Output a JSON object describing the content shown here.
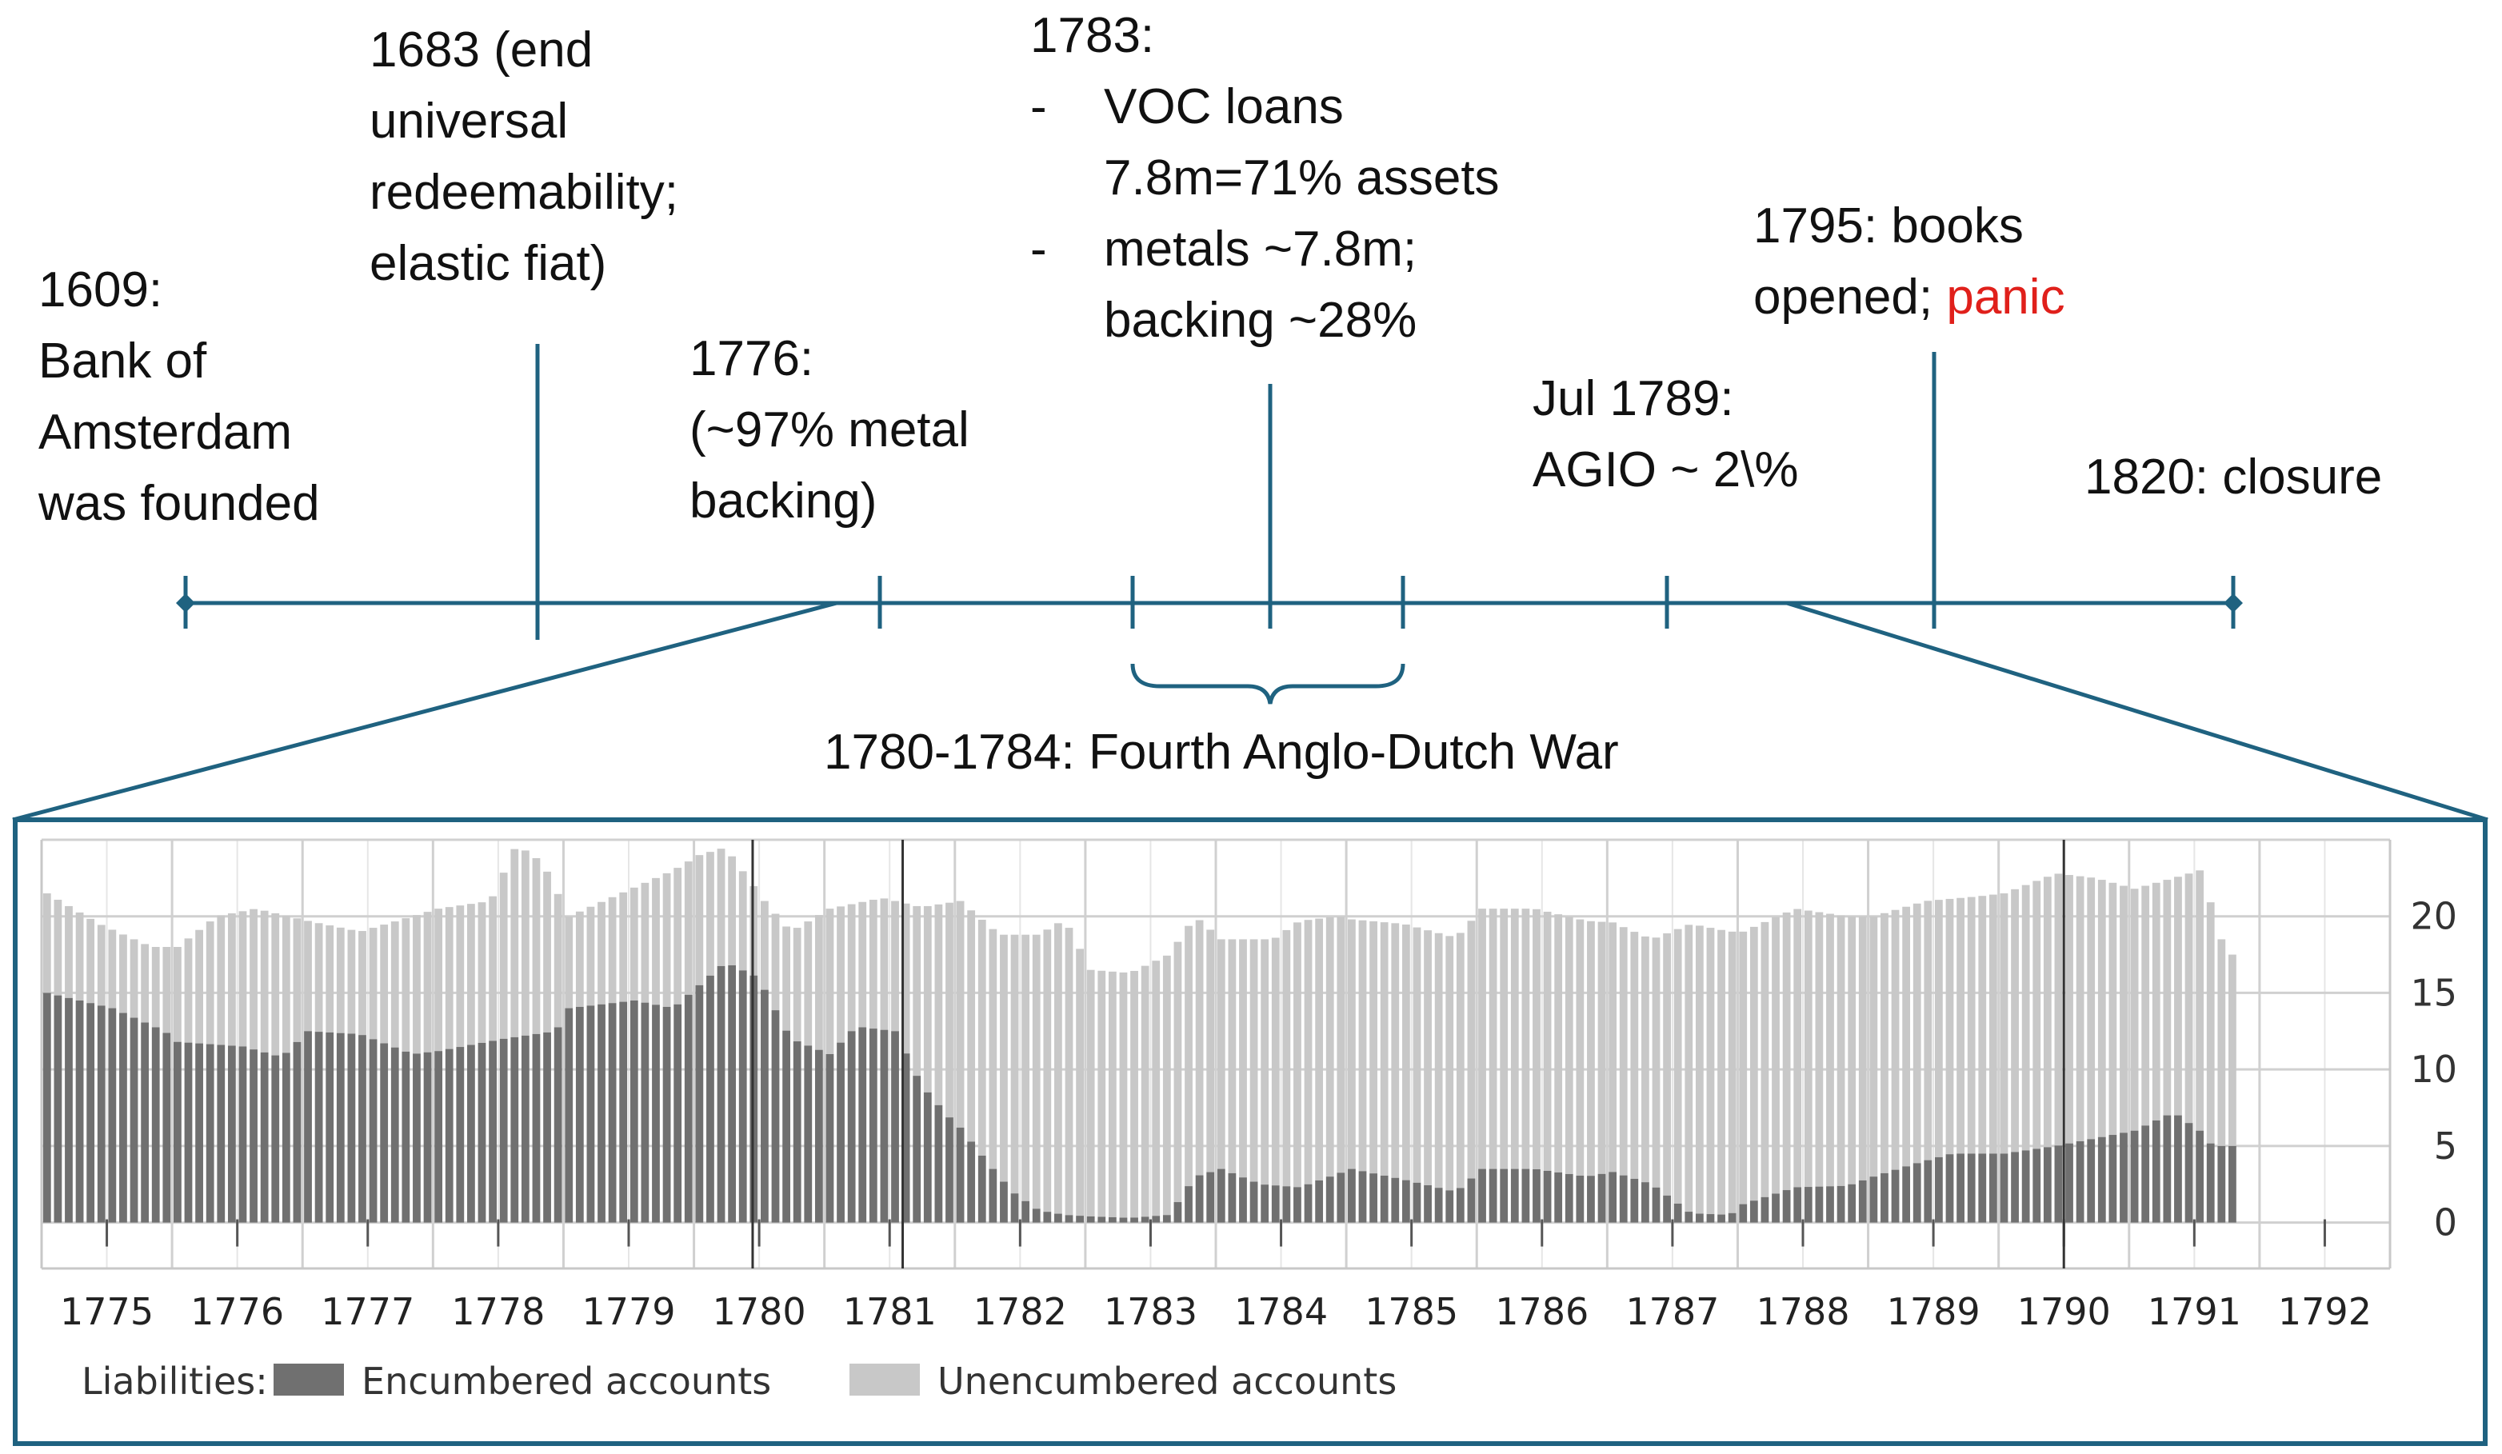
{
  "timeline": {
    "events": [
      {
        "id": "1609",
        "lines": [
          "1609:",
          "Bank of",
          "Amsterdam",
          "was founded"
        ]
      },
      {
        "id": "1683",
        "lines": [
          "1683 (end",
          "universal",
          "redeemability;",
          "elastic fiat)"
        ]
      },
      {
        "id": "1776",
        "lines": [
          "1776:",
          "(~97% metal",
          "backing)"
        ]
      },
      {
        "id": "1783",
        "heading": "1783:",
        "bullets": [
          {
            "dash": "-",
            "lines": [
              "VOC loans",
              "7.8m=71% assets"
            ]
          },
          {
            "dash": "-",
            "lines": [
              "metals ~7.8m;",
              "backing ~28%"
            ]
          }
        ]
      },
      {
        "id": "1789",
        "lines": [
          "Jul 1789:",
          "AGIO ~ 2\\%"
        ]
      },
      {
        "id": "1795",
        "lines": [
          "1795: books"
        ],
        "line2_text": "opened; ",
        "line2_highlight": "panic"
      },
      {
        "id": "1820",
        "lines": [
          "1820: closure"
        ]
      }
    ],
    "war_label": "1780-1784: Fourth Anglo-Dutch War",
    "colors": {
      "axis": "#1f6280",
      "highlight": "#e0201b"
    }
  },
  "chart_data": {
    "type": "bar",
    "stacked": true,
    "x_tick_labels": [
      "1775",
      "1776",
      "1777",
      "1778",
      "1779",
      "1780",
      "1781",
      "1782",
      "1783",
      "1784",
      "1785",
      "1786",
      "1787",
      "1788",
      "1789",
      "1790",
      "1791",
      "1792"
    ],
    "ylim": [
      -3,
      25
    ],
    "y_ticks": [
      0,
      5,
      10,
      15,
      20
    ],
    "grid": true,
    "legend_position": "bottom",
    "legend_title": "Liabilities:",
    "vertical_markers": [
      1780.45,
      1781.6,
      1790.5
    ],
    "series": [
      {
        "name": "Encumbered accounts",
        "color": "#707070",
        "points": [
          [
            1775.0,
            15
          ],
          [
            1775.5,
            14
          ],
          [
            1775.9,
            12.5
          ],
          [
            1776.0,
            11.8
          ],
          [
            1776.5,
            11.5
          ],
          [
            1776.8,
            10.8
          ],
          [
            1777.0,
            12.5
          ],
          [
            1777.4,
            12.3
          ],
          [
            1777.8,
            11
          ],
          [
            1778.0,
            11.2
          ],
          [
            1778.5,
            12
          ],
          [
            1778.9,
            12.5
          ],
          [
            1779.0,
            14
          ],
          [
            1779.5,
            14.5
          ],
          [
            1779.8,
            14
          ],
          [
            1780.0,
            15.5
          ],
          [
            1780.2,
            17
          ],
          [
            1780.45,
            16
          ],
          [
            1780.7,
            12
          ],
          [
            1781.0,
            11
          ],
          [
            1781.2,
            12.8
          ],
          [
            1781.5,
            12.5
          ],
          [
            1781.7,
            9
          ],
          [
            1781.9,
            7
          ],
          [
            1782.0,
            6.2
          ],
          [
            1782.2,
            4
          ],
          [
            1782.4,
            2
          ],
          [
            1782.6,
            0.8
          ],
          [
            1782.8,
            0.5
          ],
          [
            1783.0,
            0.4
          ],
          [
            1783.3,
            0.3
          ],
          [
            1783.6,
            0.5
          ],
          [
            1783.8,
            3
          ],
          [
            1784.0,
            3.5
          ],
          [
            1784.3,
            2.5
          ],
          [
            1784.6,
            2.3
          ],
          [
            1784.9,
            3.2
          ],
          [
            1785.0,
            3.5
          ],
          [
            1785.4,
            2.8
          ],
          [
            1785.8,
            2
          ],
          [
            1786.0,
            3.5
          ],
          [
            1786.4,
            3.5
          ],
          [
            1786.8,
            3
          ],
          [
            1787.0,
            3.3
          ],
          [
            1787.3,
            2.5
          ],
          [
            1787.6,
            0.6
          ],
          [
            1787.9,
            0.5
          ],
          [
            1788.0,
            1.2
          ],
          [
            1788.4,
            2.3
          ],
          [
            1788.8,
            2.4
          ],
          [
            1789.0,
            3
          ],
          [
            1789.3,
            3.8
          ],
          [
            1789.6,
            4.5
          ],
          [
            1790.0,
            4.5
          ],
          [
            1790.4,
            5
          ],
          [
            1790.7,
            5.5
          ],
          [
            1791.0,
            6
          ],
          [
            1791.3,
            7.2
          ],
          [
            1791.5,
            6
          ],
          [
            1791.6,
            5
          ]
        ]
      },
      {
        "name": "Unencumbered accounts",
        "color": "#c8c8c8",
        "totals": [
          [
            1775.0,
            21.5
          ],
          [
            1775.4,
            19.5
          ],
          [
            1775.8,
            18
          ],
          [
            1776.0,
            18
          ],
          [
            1776.3,
            20
          ],
          [
            1776.6,
            20.5
          ],
          [
            1777.0,
            19.7
          ],
          [
            1777.4,
            19
          ],
          [
            1777.8,
            20
          ],
          [
            1778.0,
            20.5
          ],
          [
            1778.4,
            21
          ],
          [
            1778.6,
            24.7
          ],
          [
            1778.8,
            23.5
          ],
          [
            1779.0,
            20
          ],
          [
            1779.4,
            21.5
          ],
          [
            1779.8,
            23
          ],
          [
            1780.0,
            24
          ],
          [
            1780.2,
            24.5
          ],
          [
            1780.5,
            21
          ],
          [
            1780.7,
            19
          ],
          [
            1781.0,
            20.5
          ],
          [
            1781.4,
            21.2
          ],
          [
            1781.7,
            20.6
          ],
          [
            1782.0,
            21
          ],
          [
            1782.3,
            18.8
          ],
          [
            1782.6,
            18.8
          ],
          [
            1782.8,
            19.8
          ],
          [
            1783.0,
            16.5
          ],
          [
            1783.3,
            16.3
          ],
          [
            1783.6,
            17.5
          ],
          [
            1783.8,
            20
          ],
          [
            1784.0,
            18.5
          ],
          [
            1784.4,
            18.5
          ],
          [
            1784.6,
            19.7
          ],
          [
            1784.9,
            20
          ],
          [
            1785.0,
            19.8
          ],
          [
            1785.4,
            19.5
          ],
          [
            1785.8,
            18.6
          ],
          [
            1786.0,
            20.5
          ],
          [
            1786.4,
            20.5
          ],
          [
            1786.8,
            19.7
          ],
          [
            1787.0,
            19.6
          ],
          [
            1787.3,
            18.5
          ],
          [
            1787.6,
            19.5
          ],
          [
            1787.9,
            19
          ],
          [
            1788.0,
            19
          ],
          [
            1788.4,
            20.5
          ],
          [
            1788.8,
            20
          ],
          [
            1789.0,
            20
          ],
          [
            1789.4,
            21
          ],
          [
            1789.8,
            21.3
          ],
          [
            1790.0,
            21.5
          ],
          [
            1790.4,
            22.8
          ],
          [
            1790.7,
            22.5
          ],
          [
            1791.0,
            21.8
          ],
          [
            1791.3,
            22.5
          ],
          [
            1791.5,
            23
          ],
          [
            1791.6,
            20.5
          ],
          [
            1791.7,
            17.5
          ]
        ]
      }
    ]
  }
}
